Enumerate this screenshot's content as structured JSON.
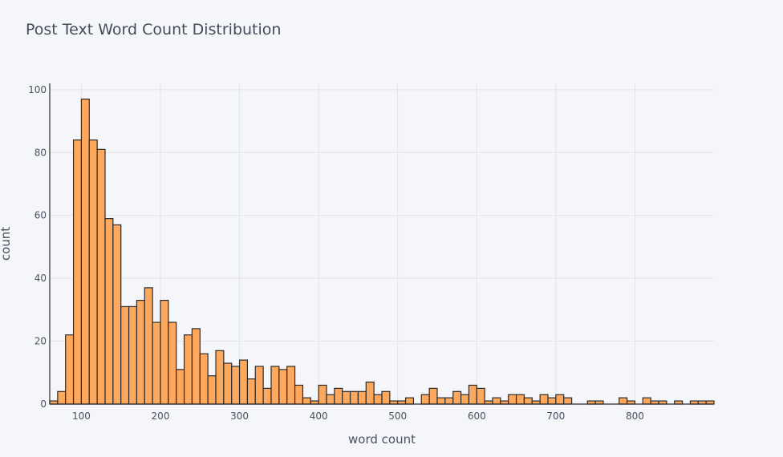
{
  "chart_data": {
    "type": "bar",
    "title": "Post Text Word Count Distribution",
    "xlabel": "word count",
    "ylabel": "count",
    "xlim": [
      60,
      900
    ],
    "ylim": [
      0,
      102
    ],
    "x_ticks": [
      100,
      200,
      300,
      400,
      500,
      600,
      700,
      800
    ],
    "y_ticks": [
      0,
      20,
      40,
      60,
      80,
      100
    ],
    "bin_start": 60,
    "bin_width": 10,
    "values": [
      1,
      4,
      22,
      84,
      97,
      84,
      81,
      59,
      57,
      31,
      31,
      33,
      37,
      26,
      33,
      26,
      11,
      22,
      24,
      16,
      9,
      17,
      13,
      12,
      14,
      8,
      12,
      5,
      12,
      11,
      12,
      6,
      2,
      1,
      6,
      3,
      5,
      4,
      4,
      4,
      7,
      3,
      4,
      1,
      1,
      2,
      0,
      3,
      5,
      2,
      2,
      4,
      3,
      6,
      5,
      1,
      2,
      1,
      3,
      3,
      2,
      1,
      3,
      2,
      3,
      2,
      0,
      0,
      1,
      1,
      0,
      0,
      2,
      1,
      0,
      2,
      1,
      1,
      0,
      1,
      0,
      1,
      1,
      1
    ],
    "bar_color": "#fda85c",
    "bar_outline": "#2b2b2b",
    "grid": true,
    "legend": "none"
  }
}
